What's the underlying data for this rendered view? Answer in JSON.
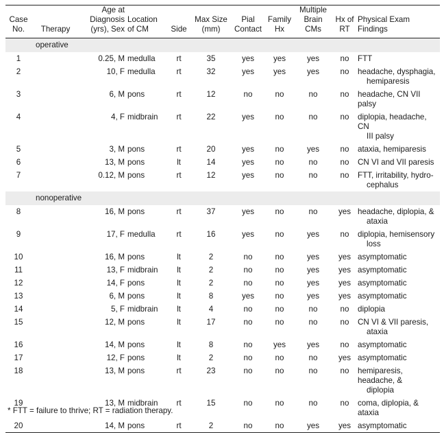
{
  "table": {
    "headers": {
      "case": [
        "Case",
        "No."
      ],
      "therapy": [
        "Therapy"
      ],
      "age": [
        "Age at",
        "Diagnosis",
        "(yrs), Sex"
      ],
      "location": [
        "Location",
        "of CM"
      ],
      "side": [
        "Side"
      ],
      "size": [
        "Max Size",
        "(mm)"
      ],
      "pial": [
        "Pial",
        "Contact"
      ],
      "family": [
        "Family",
        "Hx"
      ],
      "multiple": [
        "Multiple",
        "Brain CMs"
      ],
      "rt": [
        "Hx of",
        "RT"
      ],
      "findings": [
        "Physical Exam Findings"
      ]
    },
    "groups": [
      {
        "label": "operative",
        "rows": [
          {
            "case": "1",
            "age": "0.25, M",
            "location": "medulla",
            "side": "rt",
            "size": "35",
            "pial": "yes",
            "family": "yes",
            "multiple": "yes",
            "rt": "no",
            "findings": [
              "FTT"
            ]
          },
          {
            "case": "2",
            "age": "10, F",
            "location": "medulla",
            "side": "rt",
            "size": "32",
            "pial": "yes",
            "family": "yes",
            "multiple": "yes",
            "rt": "no",
            "findings": [
              "headache, dysphagia,",
              "hemiparesis"
            ]
          },
          {
            "case": "3",
            "age": "6, M",
            "location": "pons",
            "side": "rt",
            "size": "12",
            "pial": "no",
            "family": "no",
            "multiple": "no",
            "rt": "no",
            "findings": [
              "headache, CN VII palsy"
            ]
          },
          {
            "case": "4",
            "age": "4, F",
            "location": "midbrain",
            "side": "rt",
            "size": "22",
            "pial": "yes",
            "family": "no",
            "multiple": "no",
            "rt": "no",
            "findings": [
              "diplopia, headache, CN",
              "III palsy"
            ]
          },
          {
            "case": "5",
            "age": "3, M",
            "location": "pons",
            "side": "rt",
            "size": "20",
            "pial": "yes",
            "family": "no",
            "multiple": "yes",
            "rt": "no",
            "findings": [
              "ataxia, hemiparesis"
            ]
          },
          {
            "case": "6",
            "age": "13, M",
            "location": "pons",
            "side": "lt",
            "size": "14",
            "pial": "yes",
            "family": "no",
            "multiple": "no",
            "rt": "no",
            "findings": [
              "CN VI and VII paresis"
            ]
          },
          {
            "case": "7",
            "age": "0.12, M",
            "location": "pons",
            "side": "rt",
            "size": "12",
            "pial": "yes",
            "family": "no",
            "multiple": "no",
            "rt": "no",
            "findings": [
              "FTT, irritability, hydro-",
              "cephalus"
            ]
          }
        ]
      },
      {
        "label": "nonoperative",
        "rows": [
          {
            "case": "8",
            "age": "16, M",
            "location": "pons",
            "side": "rt",
            "size": "37",
            "pial": "yes",
            "family": "no",
            "multiple": "no",
            "rt": "yes",
            "findings": [
              "headache, diplopia, &",
              "ataxia"
            ]
          },
          {
            "case": "9",
            "age": "17, F",
            "location": "medulla",
            "side": "rt",
            "size": "16",
            "pial": "yes",
            "family": "no",
            "multiple": "yes",
            "rt": "no",
            "findings": [
              "diplopia, hemisensory",
              "loss"
            ]
          },
          {
            "case": "10",
            "age": "16, M",
            "location": "pons",
            "side": "lt",
            "size": "2",
            "pial": "no",
            "family": "no",
            "multiple": "yes",
            "rt": "yes",
            "findings": [
              "asymptomatic"
            ]
          },
          {
            "case": "11",
            "age": "13, F",
            "location": "midbrain",
            "side": "lt",
            "size": "2",
            "pial": "no",
            "family": "no",
            "multiple": "yes",
            "rt": "yes",
            "findings": [
              "asymptomatic"
            ]
          },
          {
            "case": "12",
            "age": "14, F",
            "location": "pons",
            "side": "lt",
            "size": "2",
            "pial": "no",
            "family": "no",
            "multiple": "yes",
            "rt": "yes",
            "findings": [
              "asymptomatic"
            ]
          },
          {
            "case": "13",
            "age": "6, M",
            "location": "pons",
            "side": "lt",
            "size": "8",
            "pial": "yes",
            "family": "no",
            "multiple": "yes",
            "rt": "yes",
            "findings": [
              "asymptomatic"
            ]
          },
          {
            "case": "14",
            "age": "5, F",
            "location": "midbrain",
            "side": "lt",
            "size": "4",
            "pial": "no",
            "family": "no",
            "multiple": "no",
            "rt": "no",
            "findings": [
              "diplopia"
            ]
          },
          {
            "case": "15",
            "age": "12, M",
            "location": "pons",
            "side": "lt",
            "size": "17",
            "pial": "no",
            "family": "no",
            "multiple": "no",
            "rt": "no",
            "findings": [
              "CN VI & VII paresis,",
              "ataxia"
            ]
          },
          {
            "case": "16",
            "age": "14, M",
            "location": "pons",
            "side": "lt",
            "size": "8",
            "pial": "no",
            "family": "yes",
            "multiple": "yes",
            "rt": "no",
            "findings": [
              "asymptomatic"
            ]
          },
          {
            "case": "17",
            "age": "12, F",
            "location": "pons",
            "side": "lt",
            "size": "2",
            "pial": "no",
            "family": "no",
            "multiple": "no",
            "rt": "yes",
            "findings": [
              "asymptomatic"
            ]
          },
          {
            "case": "18",
            "age": "13, M",
            "location": "pons",
            "side": "rt",
            "size": "23",
            "pial": "no",
            "family": "no",
            "multiple": "no",
            "rt": "no",
            "findings": [
              "hemiparesis, headache, &",
              "diplopia"
            ]
          },
          {
            "case": "19",
            "age": "13, M",
            "location": "midbrain",
            "side": "rt",
            "size": "15",
            "pial": "no",
            "family": "no",
            "multiple": "no",
            "rt": "no",
            "findings": [
              "coma, diplopia, & ataxia"
            ]
          },
          {
            "case": "20",
            "age": "14, M",
            "location": "pons",
            "side": "rt",
            "size": "2",
            "pial": "no",
            "family": "no",
            "multiple": "yes",
            "rt": "yes",
            "findings": [
              "asymptomatic"
            ]
          }
        ]
      }
    ]
  },
  "footnote": "*  FTT = failure to thrive; RT = radiation therapy."
}
